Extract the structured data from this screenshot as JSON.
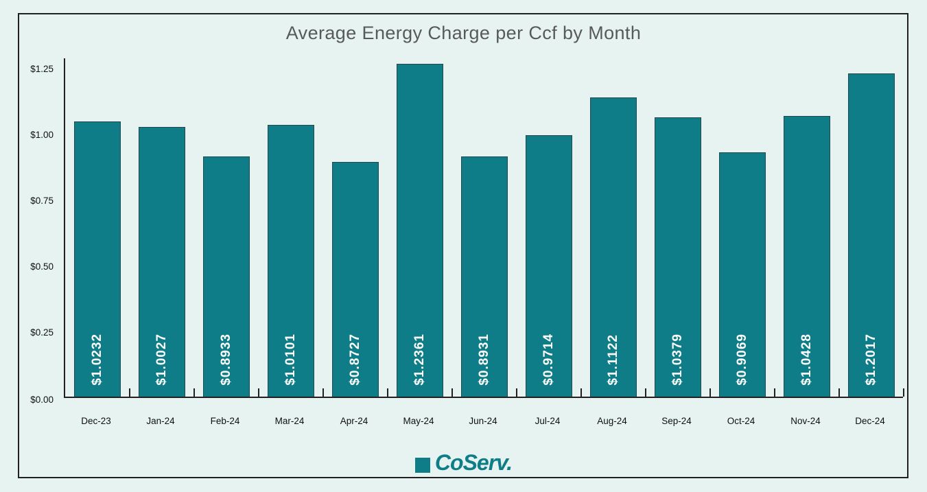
{
  "page": {
    "background": "#e6f3f0",
    "frame_border_color": "#231f20",
    "title_color": "#58595b"
  },
  "chart_data": {
    "type": "bar",
    "title": "Average Energy Charge per Ccf by Month",
    "xlabel": "",
    "ylabel": "",
    "categories": [
      "Dec-23",
      "Jan-24",
      "Feb-24",
      "Mar-24",
      "Apr-24",
      "May-24",
      "Jun-24",
      "Jul-24",
      "Aug-24",
      "Sep-24",
      "Oct-24",
      "Nov-24",
      "Dec-24"
    ],
    "values": [
      1.0232,
      1.0027,
      0.8933,
      1.0101,
      0.8727,
      1.2361,
      0.8931,
      0.9714,
      1.1122,
      1.0379,
      0.9069,
      1.0428,
      1.2017
    ],
    "bar_labels": [
      "$1.0232",
      "$1.0027",
      "$0.8933",
      "$1.0101",
      "$0.8727",
      "$1.2361",
      "$0.8931",
      "$0.9714",
      "$1.1122",
      "$1.0379",
      "$0.9069",
      "$1.0428",
      "$1.2017"
    ],
    "y_tick_labels": [
      "$0.00",
      "$0.25",
      "$0.50",
      "$0.75",
      "$1.00",
      "$1.25"
    ],
    "y_tick_values": [
      0,
      0.25,
      0.5,
      0.75,
      1.0,
      1.25
    ],
    "ylim": [
      0,
      1.27
    ],
    "grid": false,
    "legend_position": "none",
    "bar_color": "#0e7d88",
    "bar_border_color": "#24454b",
    "value_label_color": "#ffffff",
    "axis_color": "#231f20",
    "tick_label_color": "#101010"
  },
  "footer": {
    "logo_text": "CoServ.",
    "logo_color": "#0e7d88"
  }
}
